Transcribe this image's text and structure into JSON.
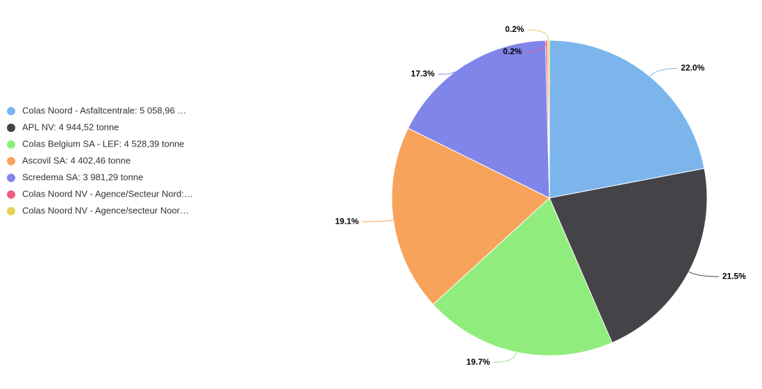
{
  "chart_data": {
    "type": "pie",
    "categories": [
      "Colas Noord - Asfaltcentrale: 5 058,96 …",
      "APL NV: 4 944,52 tonne",
      "Colas Belgium SA - LEF: 4 528,39 tonne",
      "Ascovil SA: 4 402,46 tonne",
      "Scredema SA: 3 981,29 tonne",
      "Colas Noord NV - Agence/Secteur Nord:…",
      "Colas Noord NV - Agence/secteur Noor…"
    ],
    "values": [
      22.0,
      21.5,
      19.7,
      19.1,
      17.3,
      0.2,
      0.2
    ],
    "value_labels": [
      "22.0%",
      "21.5%",
      "19.7%",
      "19.1%",
      "17.3%",
      "0.2%",
      "0.2%"
    ],
    "colors": [
      "#7cb5ec",
      "#434348",
      "#90ed7d",
      "#f7a35c",
      "#8085e9",
      "#f15c80",
      "#e4d354"
    ],
    "legend": "left"
  }
}
